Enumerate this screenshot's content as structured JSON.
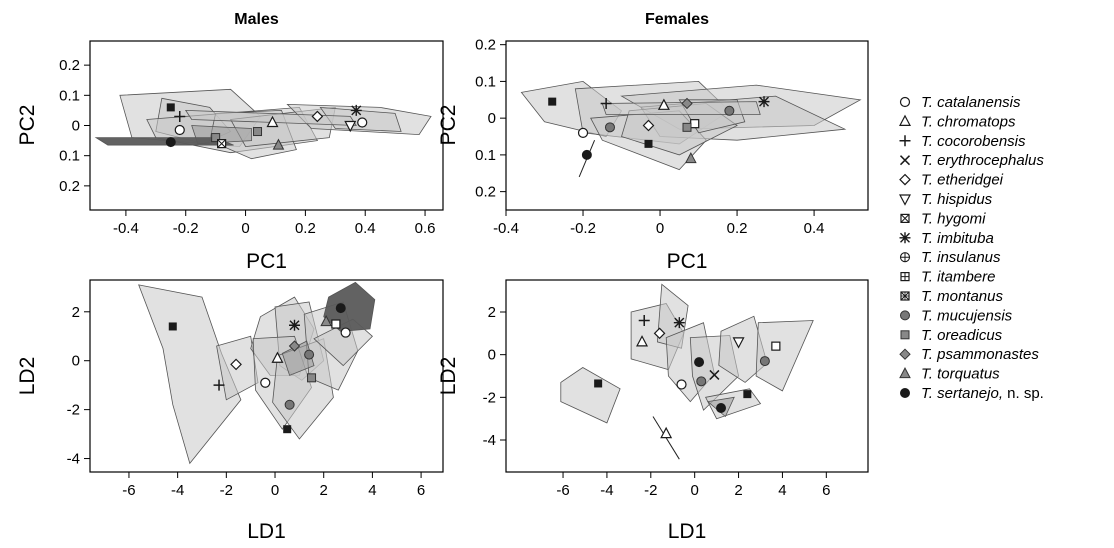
{
  "colors": {
    "hull_fill": "#c8c8c8",
    "hull_dark": "#5a5a5a",
    "hull_mid": "#9a9a9a",
    "stroke": "#555555",
    "marker": "#1a1a1a"
  },
  "legend": {
    "entries": [
      {
        "label": "T. catalanensis",
        "symbol": "circle-open"
      },
      {
        "label": "T. chromatops",
        "symbol": "triangle-open"
      },
      {
        "label": "T. cocorobensis",
        "symbol": "plus"
      },
      {
        "label": "T. erythrocephalus",
        "symbol": "cross"
      },
      {
        "label": "T. etheridgei",
        "symbol": "diamond-open"
      },
      {
        "label": "T. hispidus",
        "symbol": "triangle-down-open"
      },
      {
        "label": "T. hygomi",
        "symbol": "square-x"
      },
      {
        "label": "T. imbituba",
        "symbol": "asterisk"
      },
      {
        "label": "T. insulanus",
        "symbol": "circle-plus"
      },
      {
        "label": "T. itambere",
        "symbol": "square-plus"
      },
      {
        "label": "T. montanus",
        "symbol": "square-cross"
      },
      {
        "label": "T. mucujensis",
        "symbol": "circle-grey"
      },
      {
        "label": "T. oreadicus",
        "symbol": "square-grey"
      },
      {
        "label": "T. psammonastes",
        "symbol": "diamond-grey"
      },
      {
        "label": "T. torquatus",
        "symbol": "triangle-grey"
      },
      {
        "label": "T. sertanejo,",
        "suffix": "n. sp.",
        "symbol": "circle-filled"
      }
    ]
  },
  "chart_data": [
    {
      "type": "scatter",
      "title": "Males",
      "xlabel": "PC1",
      "ylabel": "PC2",
      "xlim": [
        -0.52,
        0.66
      ],
      "ylim": [
        -0.28,
        0.28
      ],
      "xticks": [
        -0.4,
        -0.2,
        0,
        0.2,
        0.4,
        0.6
      ],
      "xtick_labels": [
        "-0.4",
        "-0.2",
        "0",
        "0.2",
        "0.4",
        "0.6"
      ],
      "yticks": [
        0.2,
        0.1,
        0,
        -0.1,
        -0.2
      ],
      "ytick_labels": [
        "0.2",
        "0.1",
        "0",
        "0.1",
        "0.2"
      ],
      "points": [
        {
          "symbol": "square-filled",
          "x": -0.25,
          "y": 0.06
        },
        {
          "symbol": "plus",
          "x": -0.22,
          "y": 0.03
        },
        {
          "symbol": "circle-open",
          "x": -0.22,
          "y": -0.015
        },
        {
          "symbol": "circle-filled",
          "x": -0.25,
          "y": -0.055
        },
        {
          "symbol": "square-grey",
          "x": -0.1,
          "y": -0.04
        },
        {
          "symbol": "square-x",
          "x": -0.08,
          "y": -0.06
        },
        {
          "symbol": "square-grey",
          "x": 0.04,
          "y": -0.02
        },
        {
          "symbol": "triangle-open",
          "x": 0.09,
          "y": 0.01
        },
        {
          "symbol": "triangle-grey",
          "x": 0.11,
          "y": -0.065
        },
        {
          "symbol": "diamond-open",
          "x": 0.24,
          "y": 0.03
        },
        {
          "symbol": "asterisk",
          "x": 0.37,
          "y": 0.05
        },
        {
          "symbol": "triangle-down-open",
          "x": 0.35,
          "y": 0.0
        },
        {
          "symbol": "circle-open",
          "x": 0.39,
          "y": 0.01
        }
      ]
    },
    {
      "type": "scatter",
      "title": "Females",
      "xlabel": "PC1",
      "ylabel": "PC2",
      "xlim": [
        -0.4,
        0.54
      ],
      "ylim": [
        -0.25,
        0.21
      ],
      "xticks": [
        -0.4,
        -0.2,
        0,
        0.2,
        0.4
      ],
      "xtick_labels": [
        "-0.4",
        "-0.2",
        "0",
        "0.2",
        "0.4"
      ],
      "yticks": [
        0.2,
        0.1,
        0,
        -0.1,
        -0.2
      ],
      "ytick_labels": [
        "0.2",
        "0.1",
        "0",
        "0.1",
        "0.2"
      ],
      "points": [
        {
          "symbol": "square-filled",
          "x": -0.28,
          "y": 0.045
        },
        {
          "symbol": "plus",
          "x": -0.14,
          "y": 0.04
        },
        {
          "symbol": "circle-open",
          "x": -0.2,
          "y": -0.04
        },
        {
          "symbol": "circle-filled",
          "x": -0.19,
          "y": -0.1
        },
        {
          "symbol": "circle-grey",
          "x": -0.13,
          "y": -0.025
        },
        {
          "symbol": "square-filled",
          "x": -0.03,
          "y": -0.07
        },
        {
          "symbol": "triangle-open",
          "x": 0.01,
          "y": 0.035
        },
        {
          "symbol": "diamond-grey",
          "x": 0.07,
          "y": 0.04
        },
        {
          "symbol": "square-open",
          "x": 0.09,
          "y": -0.015
        },
        {
          "symbol": "square-grey",
          "x": 0.07,
          "y": -0.025
        },
        {
          "symbol": "diamond-open",
          "x": -0.03,
          "y": -0.02
        },
        {
          "symbol": "triangle-grey",
          "x": 0.08,
          "y": -0.11
        },
        {
          "symbol": "circle-grey",
          "x": 0.18,
          "y": 0.02
        },
        {
          "symbol": "asterisk",
          "x": 0.27,
          "y": 0.045
        }
      ]
    },
    {
      "type": "scatter",
      "title": "",
      "xlabel": "LD1",
      "ylabel": "LD2",
      "xlim": [
        -7.6,
        6.9
      ],
      "ylim": [
        -4.55,
        3.3
      ],
      "xticks": [
        -6,
        -4,
        -2,
        0,
        2,
        4,
        6
      ],
      "xtick_labels": [
        "-6",
        "-4",
        "-2",
        "0",
        "2",
        "4",
        "6"
      ],
      "yticks": [
        2,
        0,
        -2,
        -4
      ],
      "ytick_labels": [
        "2",
        "0",
        "-2",
        "-4"
      ],
      "points": [
        {
          "symbol": "square-filled",
          "x": -4.2,
          "y": 1.4
        },
        {
          "symbol": "diamond-open",
          "x": -1.6,
          "y": -0.15
        },
        {
          "symbol": "plus",
          "x": -2.3,
          "y": -1.0
        },
        {
          "symbol": "triangle-open",
          "x": 0.1,
          "y": 0.1
        },
        {
          "symbol": "asterisk",
          "x": 0.8,
          "y": 1.45
        },
        {
          "symbol": "diamond-grey",
          "x": 0.8,
          "y": 0.6
        },
        {
          "symbol": "circle-grey",
          "x": 1.4,
          "y": 0.25
        },
        {
          "symbol": "square-grey",
          "x": 1.5,
          "y": -0.7
        },
        {
          "symbol": "circle-grey",
          "x": 0.6,
          "y": -1.8
        },
        {
          "symbol": "square-filled",
          "x": 0.5,
          "y": -2.8
        },
        {
          "symbol": "triangle-grey",
          "x": 2.1,
          "y": 1.6
        },
        {
          "symbol": "circle-filled",
          "x": 2.7,
          "y": 2.15
        },
        {
          "symbol": "square-open",
          "x": 2.5,
          "y": 1.5
        },
        {
          "symbol": "circle-open",
          "x": 2.9,
          "y": 1.15
        },
        {
          "symbol": "circle-open",
          "x": -0.4,
          "y": -0.9
        }
      ]
    },
    {
      "type": "scatter",
      "title": "",
      "xlabel": "LD1",
      "ylabel": "LD2",
      "xlim": [
        -8.6,
        7.9
      ],
      "ylim": [
        -5.5,
        3.5
      ],
      "xticks": [
        -6,
        -4,
        -2,
        0,
        2,
        4,
        6
      ],
      "xtick_labels": [
        "-6",
        "-4",
        "-2",
        "0",
        "2",
        "4",
        "6"
      ],
      "yticks": [
        2,
        0,
        -2,
        -4
      ],
      "ytick_labels": [
        "2",
        "0",
        "-2",
        "-4"
      ],
      "points": [
        {
          "symbol": "square-filled",
          "x": -4.4,
          "y": -1.35
        },
        {
          "symbol": "triangle-open",
          "x": -2.4,
          "y": 0.6
        },
        {
          "symbol": "plus",
          "x": -2.3,
          "y": 1.6
        },
        {
          "symbol": "diamond-open",
          "x": -1.6,
          "y": 1.0
        },
        {
          "symbol": "asterisk",
          "x": -0.7,
          "y": 1.5
        },
        {
          "symbol": "circle-open",
          "x": -0.6,
          "y": -1.4
        },
        {
          "symbol": "triangle-open",
          "x": -1.3,
          "y": -3.7
        },
        {
          "symbol": "circle-filled",
          "x": 0.2,
          "y": -0.35
        },
        {
          "symbol": "circle-grey",
          "x": 0.3,
          "y": -1.25
        },
        {
          "symbol": "cross",
          "x": 0.9,
          "y": -0.95
        },
        {
          "symbol": "circle-filled",
          "x": 1.2,
          "y": -2.5
        },
        {
          "symbol": "square-filled",
          "x": 2.4,
          "y": -1.85
        },
        {
          "symbol": "triangle-down-open",
          "x": 2.0,
          "y": 0.6
        },
        {
          "symbol": "square-open",
          "x": 3.7,
          "y": 0.4
        },
        {
          "symbol": "circle-grey",
          "x": 3.2,
          "y": -0.3
        }
      ]
    }
  ]
}
